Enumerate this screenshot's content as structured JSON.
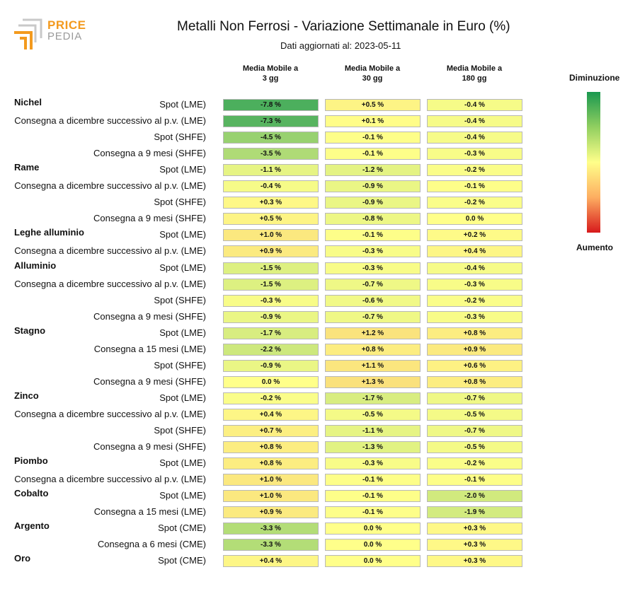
{
  "logo": {
    "line1": "PRICE",
    "line2": "PEDIA"
  },
  "title": "Metalli Non Ferrosi - Variazione Settimanale in Euro (%)",
  "subtitle": "Dati aggiornati al: 2023-05-11",
  "legend": {
    "top": "Diminuzione",
    "bottom": "Aumento"
  },
  "columns": [
    {
      "line1": "Media Mobile a",
      "line2": "3 gg"
    },
    {
      "line1": "Media Mobile a",
      "line2": "30 gg"
    },
    {
      "line1": "Media Mobile a",
      "line2": "180 gg"
    }
  ],
  "chart_data": {
    "type": "table",
    "color_scale": {
      "min_color": "#1a9850",
      "mid_color": "#ffff8a",
      "max_color": "#d7191c",
      "range": [
        -10,
        10
      ]
    },
    "groups": [
      {
        "name": "Nichel",
        "rows": [
          {
            "label": "Spot (LME)",
            "values": [
              "-7.8 %",
              "+0.5 %",
              "-0.4 %"
            ]
          },
          {
            "label": "Consegna a dicembre successivo al p.v. (LME)",
            "values": [
              "-7.3 %",
              "+0.1 %",
              "-0.4 %"
            ]
          },
          {
            "label": "Spot (SHFE)",
            "values": [
              "-4.5 %",
              "-0.1 %",
              "-0.4 %"
            ]
          },
          {
            "label": "Consegna a 9 mesi (SHFE)",
            "values": [
              "-3.5 %",
              "-0.1 %",
              "-0.3 %"
            ]
          }
        ]
      },
      {
        "name": "Rame",
        "rows": [
          {
            "label": "Spot (LME)",
            "values": [
              "-1.1 %",
              "-1.2 %",
              "-0.2 %"
            ]
          },
          {
            "label": "Consegna a dicembre successivo al p.v. (LME)",
            "values": [
              "-0.4 %",
              "-0.9 %",
              "-0.1 %"
            ]
          },
          {
            "label": "Spot (SHFE)",
            "values": [
              "+0.3 %",
              "-0.9 %",
              "-0.2 %"
            ]
          },
          {
            "label": "Consegna a 9 mesi (SHFE)",
            "values": [
              "+0.5 %",
              "-0.8 %",
              "0.0 %"
            ]
          }
        ]
      },
      {
        "name": "Leghe alluminio",
        "rows": [
          {
            "label": "Spot (LME)",
            "values": [
              "+1.0 %",
              "-0.1 %",
              "+0.2 %"
            ]
          },
          {
            "label": "Consegna a dicembre successivo al p.v. (LME)",
            "values": [
              "+0.9 %",
              "-0.3 %",
              "+0.4 %"
            ]
          }
        ]
      },
      {
        "name": "Alluminio",
        "rows": [
          {
            "label": "Spot (LME)",
            "values": [
              "-1.5 %",
              "-0.3 %",
              "-0.4 %"
            ]
          },
          {
            "label": "Consegna a dicembre successivo al p.v. (LME)",
            "values": [
              "-1.5 %",
              "-0.7 %",
              "-0.3 %"
            ]
          },
          {
            "label": "Spot (SHFE)",
            "values": [
              "-0.3 %",
              "-0.6 %",
              "-0.2 %"
            ]
          },
          {
            "label": "Consegna a 9 mesi (SHFE)",
            "values": [
              "-0.9 %",
              "-0.7 %",
              "-0.3 %"
            ]
          }
        ]
      },
      {
        "name": "Stagno",
        "rows": [
          {
            "label": "Spot (LME)",
            "values": [
              "-1.7 %",
              "+1.2 %",
              "+0.8 %"
            ]
          },
          {
            "label": "Consegna a 15 mesi (LME)",
            "values": [
              "-2.2 %",
              "+0.8 %",
              "+0.9 %"
            ]
          },
          {
            "label": "Spot (SHFE)",
            "values": [
              "-0.9 %",
              "+1.1 %",
              "+0.6 %"
            ]
          },
          {
            "label": "Consegna a 9 mesi (SHFE)",
            "values": [
              "0.0 %",
              "+1.3 %",
              "+0.8 %"
            ]
          }
        ]
      },
      {
        "name": "Zinco",
        "rows": [
          {
            "label": "Spot (LME)",
            "values": [
              "-0.2 %",
              "-1.7 %",
              "-0.7 %"
            ]
          },
          {
            "label": "Consegna a dicembre successivo al p.v. (LME)",
            "values": [
              "+0.4 %",
              "-0.5 %",
              "-0.5 %"
            ]
          },
          {
            "label": "Spot (SHFE)",
            "values": [
              "+0.7 %",
              "-1.1 %",
              "-0.7 %"
            ]
          },
          {
            "label": "Consegna a 9 mesi (SHFE)",
            "values": [
              "+0.8 %",
              "-1.3 %",
              "-0.5 %"
            ]
          }
        ]
      },
      {
        "name": "Piombo",
        "rows": [
          {
            "label": "Spot (LME)",
            "values": [
              "+0.8 %",
              "-0.3 %",
              "-0.2 %"
            ]
          },
          {
            "label": "Consegna a dicembre successivo al p.v. (LME)",
            "values": [
              "+1.0 %",
              "-0.1 %",
              "-0.1 %"
            ]
          }
        ]
      },
      {
        "name": "Cobalto",
        "rows": [
          {
            "label": "Spot (LME)",
            "values": [
              "+1.0 %",
              "-0.1 %",
              "-2.0 %"
            ]
          },
          {
            "label": "Consegna a 15 mesi (LME)",
            "values": [
              "+0.9 %",
              "-0.1 %",
              "-1.9 %"
            ]
          }
        ]
      },
      {
        "name": "Argento",
        "rows": [
          {
            "label": "Spot (CME)",
            "values": [
              "-3.3 %",
              "0.0 %",
              "+0.3 %"
            ]
          },
          {
            "label": "Consegna a 6 mesi (CME)",
            "values": [
              "-3.3 %",
              "0.0 %",
              "+0.3 %"
            ]
          }
        ]
      },
      {
        "name": "Oro",
        "rows": [
          {
            "label": "Spot (CME)",
            "values": [
              "+0.4 %",
              "0.0 %",
              "+0.3 %"
            ]
          }
        ]
      }
    ]
  }
}
